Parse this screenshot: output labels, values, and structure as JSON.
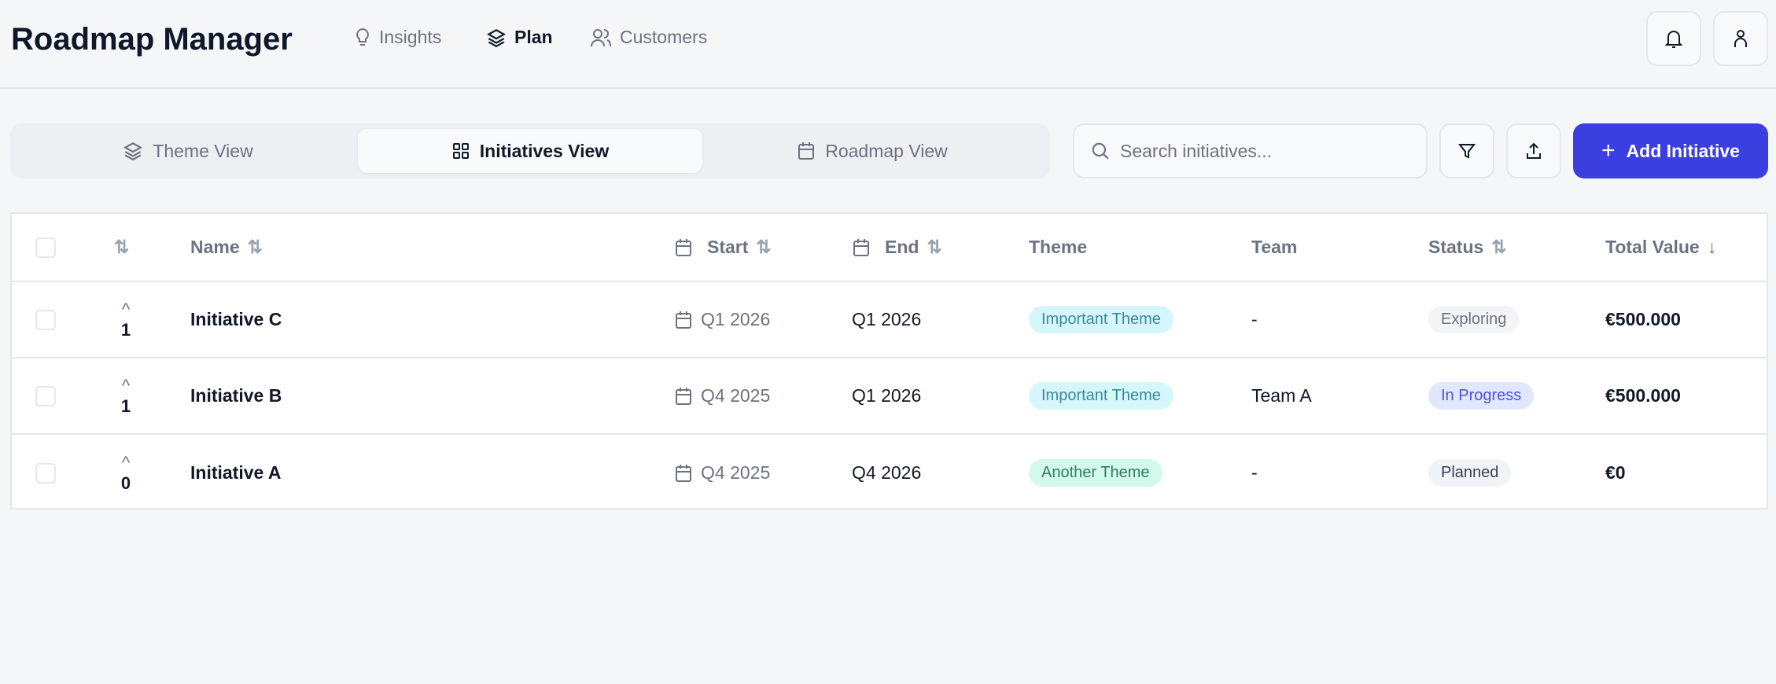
{
  "header": {
    "title": "Roadmap Manager",
    "nav": [
      {
        "label": "Insights",
        "icon": "lightbulb-icon"
      },
      {
        "label": "Plan",
        "icon": "layers-icon",
        "active": true
      },
      {
        "label": "Customers",
        "icon": "users-icon"
      }
    ]
  },
  "views": [
    {
      "label": "Theme View",
      "icon": "layers-icon"
    },
    {
      "label": "Initiatives View",
      "icon": "grid-icon",
      "active": true
    },
    {
      "label": "Roadmap View",
      "icon": "calendar-icon"
    }
  ],
  "toolbar": {
    "search_placeholder": "Search initiatives...",
    "search_value": "",
    "add_label": "Add Initiative"
  },
  "table": {
    "columns": {
      "name": "Name",
      "start": "Start",
      "end": "End",
      "theme": "Theme",
      "team": "Team",
      "status": "Status",
      "total": "Total Value"
    },
    "rows": [
      {
        "votes": "1",
        "name": "Initiative C",
        "start": "Q1 2026",
        "end": "Q1 2026",
        "theme": "Important Theme",
        "team": "-",
        "status": "Exploring",
        "total": "€500.000"
      },
      {
        "votes": "1",
        "name": "Initiative B",
        "start": "Q4 2025",
        "end": "Q1 2026",
        "theme": "Important Theme",
        "team": "Team A",
        "status": "In Progress",
        "total": "€500.000"
      },
      {
        "votes": "0",
        "name": "Initiative A",
        "start": "Q4 2025",
        "end": "Q4 2026",
        "theme": "Another Theme",
        "team": "-",
        "status": "Planned",
        "total": "€0"
      }
    ]
  },
  "colors": {
    "accent": "#3b3fe0",
    "theme_important_bg": "#d5f7fb",
    "theme_important_fg": "#3a8a97",
    "theme_another_bg": "#d3f8ec",
    "theme_another_fg": "#2f7d60",
    "status_exploring_bg": "#f3f4f6",
    "status_inprogress_bg": "#e0e7ff",
    "status_inprogress_fg": "#4f52d8",
    "status_planned_bg": "#f1f3f6"
  }
}
